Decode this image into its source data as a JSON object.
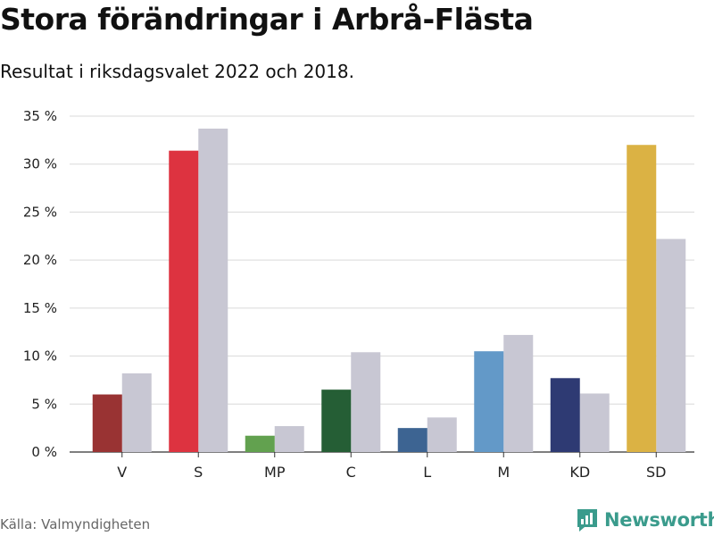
{
  "title": "Stora förändringar i Arbrå-Flästa",
  "subtitle": "Resultat i riksdagsvalet 2022 och 2018.",
  "source": "Källa: Valmyndigheten",
  "brand": {
    "name": "Newsworthy",
    "color": "#3a9b8c",
    "icon": "chart-bubble-icon"
  },
  "chart_data": {
    "type": "bar",
    "categories": [
      "V",
      "S",
      "MP",
      "C",
      "L",
      "M",
      "KD",
      "SD"
    ],
    "series": [
      {
        "values": [
          6.0,
          31.4,
          1.7,
          6.5,
          2.5,
          10.5,
          7.7,
          32.0
        ]
      },
      {
        "values": [
          8.2,
          33.7,
          2.7,
          10.4,
          3.6,
          12.2,
          6.1,
          22.2
        ]
      }
    ],
    "colors_2022": [
      "#993333",
      "#dd3340",
      "#62a14f",
      "#255e35",
      "#3d6492",
      "#6399c8",
      "#2e3a73",
      "#dbb244"
    ],
    "color_2018": "#c8c7d3",
    "ylim": [
      0,
      35
    ],
    "yticks": [
      0,
      5,
      10,
      15,
      20,
      25,
      30,
      35
    ],
    "ytick_suffix": " %",
    "grid": true
  }
}
